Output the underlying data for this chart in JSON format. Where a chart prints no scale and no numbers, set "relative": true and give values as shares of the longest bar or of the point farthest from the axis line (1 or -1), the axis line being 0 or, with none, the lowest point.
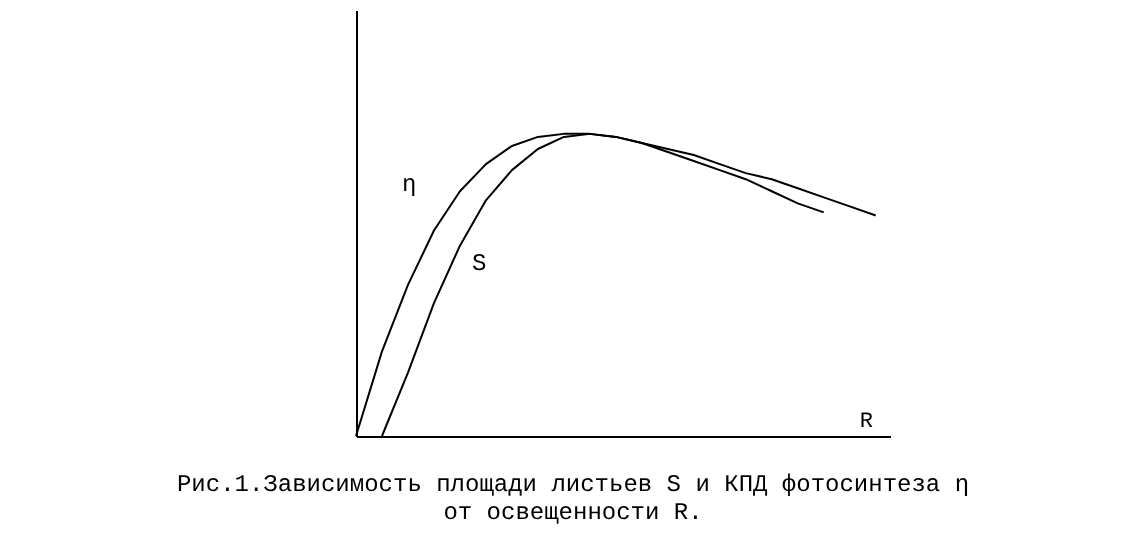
{
  "chart_data": {
    "type": "line",
    "relative": true,
    "xlabel": "R",
    "annotations": [
      "Рис.1.Зависимость площади листьев S и КПД фотосинтеза η",
      "от освещенности R."
    ],
    "categories": [
      null,
      null,
      null,
      null,
      null,
      null,
      null,
      null,
      null,
      null,
      null,
      null,
      null,
      null,
      null,
      null,
      null,
      null,
      null,
      null,
      null
    ],
    "series": [
      {
        "name": "η",
        "color": "#000000",
        "values": [
          0,
          0.28,
          0.5,
          0.68,
          0.81,
          0.9,
          0.96,
          0.99,
          1,
          1,
          0.99,
          0.97,
          0.95,
          0.93,
          0.9,
          0.87,
          0.85,
          0.82,
          0.79,
          0.76,
          0.73
        ]
      },
      {
        "name": "S",
        "color": "#000000",
        "values": [
          null,
          0,
          0.21,
          0.44,
          0.63,
          0.78,
          0.88,
          0.95,
          0.99,
          1,
          0.99,
          0.97,
          0.94,
          0.91,
          0.88,
          0.85,
          0.81,
          0.77,
          0.74,
          null,
          null
        ]
      }
    ],
    "grid": false,
    "marker": "none",
    "line_style": "solid"
  }
}
